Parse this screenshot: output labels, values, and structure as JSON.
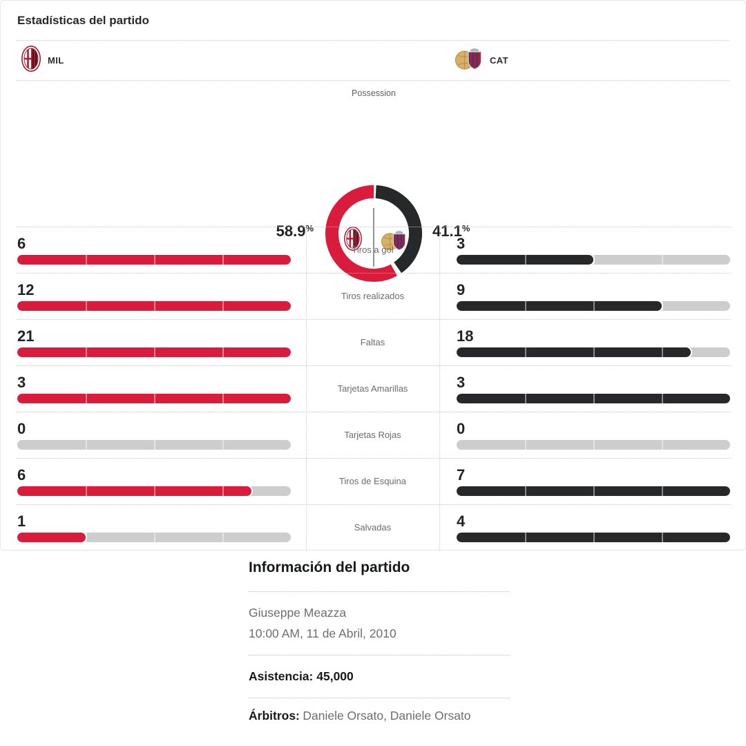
{
  "stats_card": {
    "title": "Estadísticas del partido",
    "teams": {
      "home": {
        "abbr": "MIL"
      },
      "away": {
        "abbr": "CAT"
      }
    }
  },
  "chart_data": {
    "type": "donut",
    "title": "Possession",
    "series": [
      {
        "name": "MIL",
        "value": 58.9,
        "label": "58.9",
        "color": "#d91b3c"
      },
      {
        "name": "CAT",
        "value": 41.1,
        "label": "41.1",
        "color": "#26282a"
      }
    ],
    "percent_symbol": "%"
  },
  "stats": {
    "rows": [
      {
        "label": "Tiros a gol",
        "home": 6,
        "away": 3
      },
      {
        "label": "Tiros realizados",
        "home": 12,
        "away": 9
      },
      {
        "label": "Faltas",
        "home": 21,
        "away": 18
      },
      {
        "label": "Tarjetas Amarillas",
        "home": 3,
        "away": 3
      },
      {
        "label": "Tarjetas Rojas",
        "home": 0,
        "away": 0
      },
      {
        "label": "Tiros de Esquina",
        "home": 6,
        "away": 7
      },
      {
        "label": "Salvadas",
        "home": 1,
        "away": 4
      }
    ],
    "colors": {
      "home_fill": "#d91b3c",
      "away_fill": "#26282a",
      "track": "#cdcdcd"
    }
  },
  "match_info": {
    "title": "Información del partido",
    "venue": "Giuseppe Meazza",
    "datetime": "10:00 AM, 11 de Abril, 2010",
    "attendance_label": "Asistencia:",
    "attendance_value": "45,000",
    "referees_label": "Árbitros:",
    "referees": "Daniele Orsato, Daniele Orsato"
  }
}
